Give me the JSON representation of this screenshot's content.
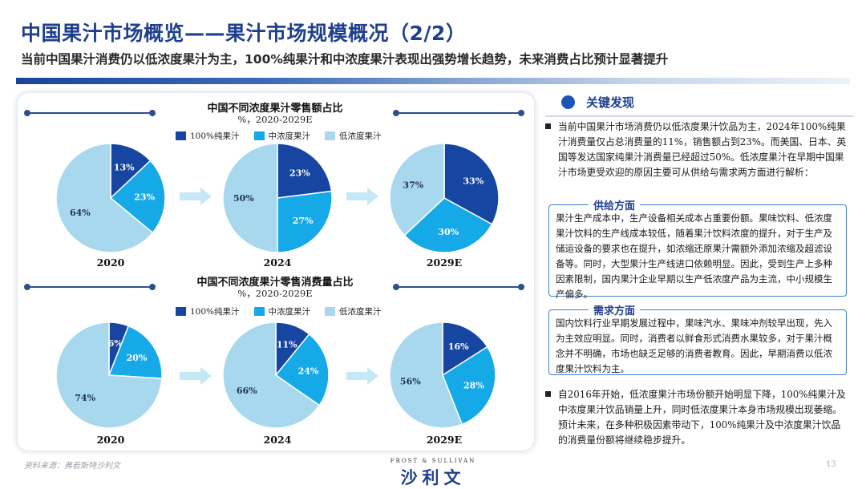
{
  "header": {
    "title": "中国果汁市场概览——果汁市场规模概况（2/2）",
    "subtitle": "当前中国果汁消费仍以低浓度果汁为主，100%纯果汁和中浓度果汁表现出强势增长趋势，未来消费占比预计显著提升"
  },
  "colors": {
    "pure": "#1746a2",
    "mid": "#16a9e8",
    "low": "#a8d8ee"
  },
  "legend": {
    "pure": "100%纯果汁",
    "mid": "中浓度果汁",
    "low": "低浓度果汁"
  },
  "chart_data": [
    {
      "type": "pie",
      "title": "中国不同浓度果汁零售额占比",
      "subtitle": "%，2020-2029E",
      "categories": [
        "100%纯果汁",
        "中浓度果汁",
        "低浓度果汁"
      ],
      "series": [
        {
          "name": "2020",
          "values": [
            13,
            23,
            64
          ]
        },
        {
          "name": "2024",
          "values": [
            23,
            27,
            50
          ]
        },
        {
          "name": "2029E",
          "values": [
            33,
            30,
            37
          ]
        }
      ]
    },
    {
      "type": "pie",
      "title": "中国不同浓度果汁零售消费量占比",
      "subtitle": "%，2020-2029E",
      "categories": [
        "100%纯果汁",
        "中浓度果汁",
        "低浓度果汁"
      ],
      "series": [
        {
          "name": "2020",
          "values": [
            6,
            20,
            74
          ]
        },
        {
          "name": "2024",
          "values": [
            11,
            24,
            66
          ]
        },
        {
          "name": "2029E",
          "values": [
            16,
            28,
            56
          ]
        }
      ]
    }
  ],
  "findings": {
    "title": "关键发现",
    "p1": "当前中国果汁市场消费仍以低浓度果汁饮品为主，2024年100%纯果汁消费量仅占总消费量的11%，销售额占到23%。而美国、日本、英国等发达国家纯果汁消费量已经超过50%。低浓度果汁在早期中国果汁市场更受欢迎的原因主要可从供给与需求两方面进行解析：",
    "supply_title": "供给方面",
    "supply_text": "果汁生产成本中，生产设备相关成本占重要份额。果味饮料、低浓度果汁饮料的生产线成本较低，随着果汁饮料浓度的提升，对于生产及储运设备的要求也在提升，如浓缩还原果汁需额外添加浓缩及超滤设备等。同时，大型果汁生产线进口依赖明显。因此，受到生产上多种因素限制，国内果汁企业早期以生产低浓度产品为主流，中小规模生产偏多。",
    "demand_title": "需求方面",
    "demand_text": "国内饮料行业早期发展过程中，果味汽水、果味冲剂较早出现，先入为主效应明显。同时，消费者以鲜食形式消费水果较多，对于果汁概念并不明确，市场也缺乏足够的消费者教育。因此，早期消费以低浓度果汁饮料为主。",
    "p2": "自2016年开始，低浓度果汁市场份额开始明显下降，100%纯果汁及中浓度果汁饮品销量上升，同时低浓度果汁本身市场规模出现萎缩。预计未来，在多种积极因素带动下，100%纯果汁及中浓度果汁饮品的消费量份额将继续稳步提升。"
  },
  "footer": {
    "source": "资料来源：弗若斯特沙利文",
    "brand_top": "FROST & SULLIVAN",
    "brand": "沙利文",
    "page": "13"
  }
}
